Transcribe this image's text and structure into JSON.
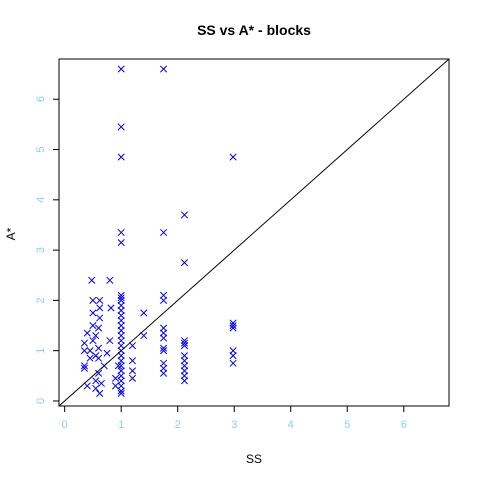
{
  "chart_data": {
    "type": "scatter",
    "title": "SS vs A* - blocks",
    "xlabel": "SS",
    "ylabel": "A*",
    "xlim": [
      -0.1,
      6.8
    ],
    "ylim": [
      -0.1,
      6.8
    ],
    "xticks": [
      0,
      1,
      2,
      3,
      4,
      5,
      6
    ],
    "yticks": [
      0,
      1,
      2,
      3,
      4,
      5,
      6
    ],
    "marker": "x",
    "colors": {
      "points": "#0000ff",
      "tick_labels": "#87cefa",
      "axis_line": "#000000",
      "reference_line": "#000000"
    },
    "reference_line": {
      "type": "y=x"
    },
    "series": [
      {
        "points": [
          [
            0.35,
            0.65
          ],
          [
            0.35,
            0.7
          ],
          [
            0.35,
            1.0
          ],
          [
            0.35,
            1.15
          ],
          [
            0.4,
            1.35
          ],
          [
            0.4,
            0.3
          ],
          [
            0.45,
            0.85
          ],
          [
            0.45,
            1.0
          ],
          [
            0.5,
            1.2
          ],
          [
            0.5,
            1.5
          ],
          [
            0.5,
            1.75
          ],
          [
            0.5,
            2.0
          ],
          [
            0.48,
            2.4
          ],
          [
            0.55,
            1.3
          ],
          [
            0.55,
            0.9
          ],
          [
            0.55,
            0.4
          ],
          [
            0.55,
            0.25
          ],
          [
            0.6,
            0.55
          ],
          [
            0.6,
            0.85
          ],
          [
            0.6,
            1.05
          ],
          [
            0.6,
            1.45
          ],
          [
            0.62,
            1.65
          ],
          [
            0.62,
            1.85
          ],
          [
            0.62,
            2.0
          ],
          [
            0.62,
            0.15
          ],
          [
            0.65,
            0.35
          ],
          [
            0.7,
            0.7
          ],
          [
            0.75,
            0.95
          ],
          [
            0.8,
            1.2
          ],
          [
            0.8,
            2.4
          ],
          [
            0.82,
            1.85
          ],
          [
            0.9,
            0.3
          ],
          [
            0.9,
            0.45
          ],
          [
            0.95,
            0.7
          ],
          [
            1.0,
            0.15
          ],
          [
            1.0,
            0.2
          ],
          [
            1.0,
            0.3
          ],
          [
            1.0,
            0.4
          ],
          [
            1.0,
            0.5
          ],
          [
            1.0,
            0.6
          ],
          [
            1.0,
            0.7
          ],
          [
            1.0,
            0.8
          ],
          [
            1.0,
            0.9
          ],
          [
            1.0,
            1.0
          ],
          [
            1.0,
            1.1
          ],
          [
            1.0,
            1.2
          ],
          [
            1.0,
            1.3
          ],
          [
            1.0,
            1.4
          ],
          [
            1.0,
            1.5
          ],
          [
            1.0,
            1.6
          ],
          [
            1.0,
            1.7
          ],
          [
            1.0,
            1.8
          ],
          [
            1.0,
            1.9
          ],
          [
            1.0,
            2.0
          ],
          [
            1.0,
            2.05
          ],
          [
            1.0,
            2.1
          ],
          [
            1.0,
            3.15
          ],
          [
            1.0,
            3.35
          ],
          [
            1.0,
            4.85
          ],
          [
            1.0,
            5.45
          ],
          [
            1.0,
            6.6
          ],
          [
            1.2,
            0.45
          ],
          [
            1.2,
            0.6
          ],
          [
            1.2,
            0.8
          ],
          [
            1.2,
            1.1
          ],
          [
            1.4,
            1.3
          ],
          [
            1.4,
            1.75
          ],
          [
            1.75,
            0.55
          ],
          [
            1.75,
            0.65
          ],
          [
            1.75,
            0.75
          ],
          [
            1.75,
            1.0
          ],
          [
            1.75,
            1.05
          ],
          [
            1.75,
            1.25
          ],
          [
            1.75,
            1.35
          ],
          [
            1.75,
            1.45
          ],
          [
            1.75,
            2.0
          ],
          [
            1.75,
            2.1
          ],
          [
            1.75,
            3.35
          ],
          [
            1.75,
            6.6
          ],
          [
            2.12,
            0.4
          ],
          [
            2.12,
            0.5
          ],
          [
            2.12,
            0.6
          ],
          [
            2.12,
            0.7
          ],
          [
            2.12,
            0.8
          ],
          [
            2.12,
            0.9
          ],
          [
            2.12,
            1.1
          ],
          [
            2.12,
            1.15
          ],
          [
            2.12,
            1.2
          ],
          [
            2.12,
            2.75
          ],
          [
            2.12,
            3.7
          ],
          [
            2.98,
            0.75
          ],
          [
            2.98,
            0.9
          ],
          [
            2.98,
            1.0
          ],
          [
            2.98,
            1.45
          ],
          [
            2.98,
            1.5
          ],
          [
            2.98,
            1.55
          ],
          [
            2.98,
            4.85
          ]
        ]
      }
    ]
  }
}
